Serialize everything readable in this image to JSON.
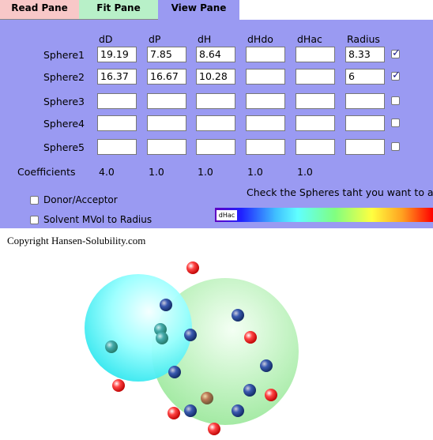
{
  "tabs": [
    {
      "label": "Read Pane",
      "color": "#f8c8c8"
    },
    {
      "label": "Fit Pane",
      "color": "#b8f0c8"
    },
    {
      "label": "View Pane",
      "color": "#9a9af2"
    }
  ],
  "table": {
    "headers": [
      "dD",
      "dP",
      "dH",
      "dHdo",
      "dHac",
      "Radius"
    ],
    "rows": [
      {
        "name": "Sphere1",
        "cells": [
          "19.19",
          "7.85",
          "8.64",
          "",
          "",
          "8.33"
        ],
        "checked": true
      },
      {
        "name": "Sphere2",
        "cells": [
          "16.37",
          "16.67",
          "10.28",
          "",
          "",
          "6"
        ],
        "checked": true
      },
      {
        "name": "Sphere3",
        "cells": [
          "",
          "",
          "",
          "",
          "",
          ""
        ],
        "checked": false
      },
      {
        "name": "Sphere4",
        "cells": [
          "",
          "",
          "",
          "",
          "",
          ""
        ],
        "checked": false
      },
      {
        "name": "Sphere5",
        "cells": [
          "",
          "",
          "",
          "",
          "",
          ""
        ],
        "checked": false
      }
    ],
    "coefficients_label": "Coefficients",
    "coefficients": [
      "4.0",
      "1.0",
      "1.0",
      "1.0",
      "1.0"
    ]
  },
  "options": [
    {
      "label": "Donor/Acceptor",
      "checked": false
    },
    {
      "label": "Solvent MVol to Radius",
      "checked": false
    }
  ],
  "hint": "Check the Spheres taht you want to a",
  "colorbar_label": "dHac",
  "copyright": "Copyright Hansen-Solubility.com"
}
